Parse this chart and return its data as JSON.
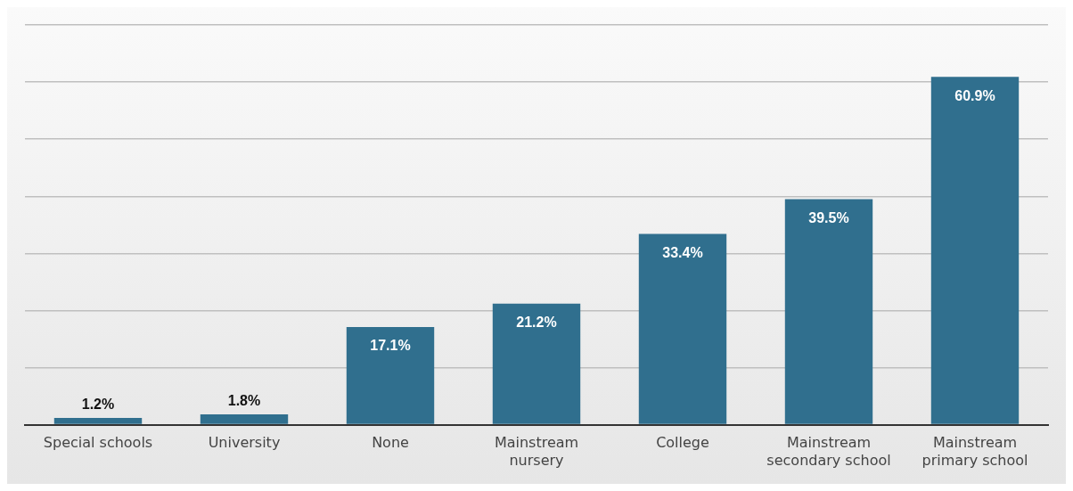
{
  "chart_data": {
    "type": "bar",
    "categories": [
      "Special schools",
      "University",
      "None",
      "Mainstream nursery",
      "College",
      "Mainstream secondary school",
      "Mainstream primary school"
    ],
    "values": [
      1.2,
      1.8,
      17.1,
      21.2,
      33.4,
      39.5,
      60.9
    ],
    "value_labels": [
      "1.2%",
      "1.8%",
      "17.1%",
      "21.2%",
      "33.4%",
      "39.5%",
      "60.9%"
    ],
    "color": "#306f8e",
    "grid": "y",
    "tick_labels": "x",
    "legend": false
  }
}
